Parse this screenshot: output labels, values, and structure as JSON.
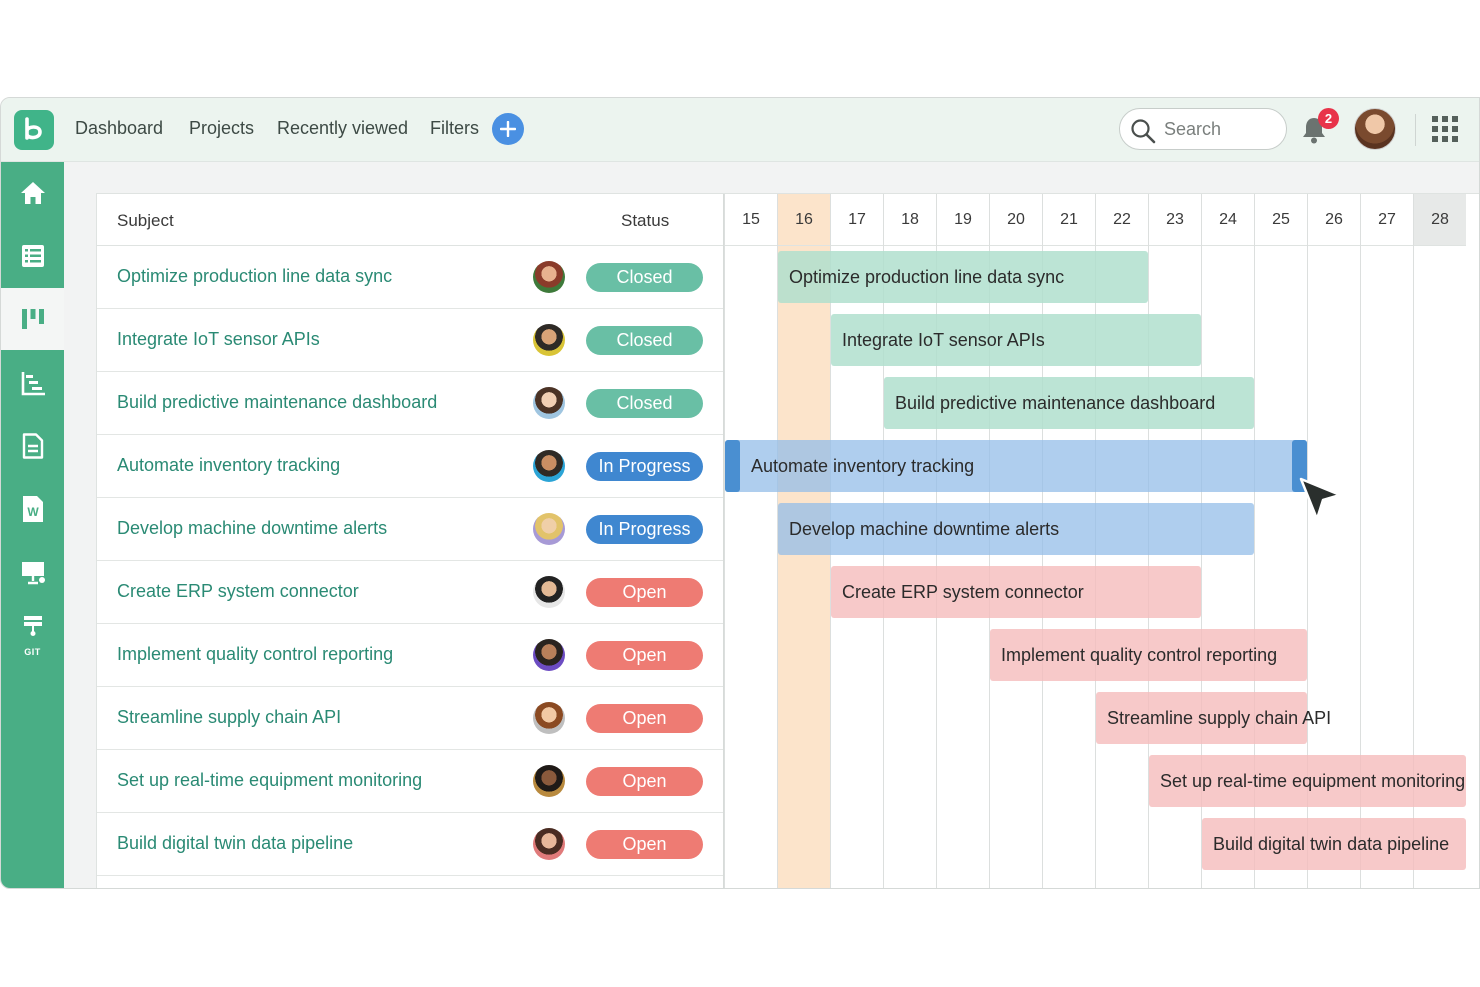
{
  "nav": {
    "links": [
      "Dashboard",
      "Projects",
      "Recently viewed",
      "Filters"
    ],
    "search_placeholder": "Search",
    "notification_count": "2"
  },
  "sidebar": {
    "items": [
      "home-icon",
      "list-icon",
      "board-icon",
      "gantt-icon",
      "document-icon",
      "word-icon",
      "presentation-icon",
      "git-icon"
    ],
    "active_index": 2,
    "git_label": "GIT"
  },
  "table": {
    "headers": {
      "subject": "Subject",
      "status": "Status"
    },
    "rows": [
      {
        "subject": "Optimize production line data sync",
        "status": "Closed"
      },
      {
        "subject": "Integrate IoT sensor APIs",
        "status": "Closed"
      },
      {
        "subject": "Build predictive maintenance dashboard",
        "status": "Closed"
      },
      {
        "subject": "Automate inventory tracking",
        "status": "In Progress"
      },
      {
        "subject": "Develop machine downtime alerts",
        "status": "In Progress"
      },
      {
        "subject": "Create ERP system connector",
        "status": "Open"
      },
      {
        "subject": "Implement quality control reporting",
        "status": "Open"
      },
      {
        "subject": "Streamline supply chain API",
        "status": "Open"
      },
      {
        "subject": "Set up real-time equipment monitoring",
        "status": "Open"
      },
      {
        "subject": "Build digital twin data pipeline",
        "status": "Open"
      }
    ]
  },
  "status_colors": {
    "Closed": "#69bfa5",
    "In Progress": "#3f87d0",
    "Open": "#ee7b73"
  },
  "gantt": {
    "days": [
      "15",
      "16",
      "17",
      "18",
      "19",
      "20",
      "21",
      "22",
      "23",
      "24",
      "25",
      "26",
      "27",
      "28"
    ],
    "today": "16",
    "weekend": [
      "28"
    ],
    "bars": [
      {
        "label": "Optimize production line data sync",
        "start": "16",
        "end": "22",
        "status": "Closed"
      },
      {
        "label": "Integrate IoT sensor APIs",
        "start": "17",
        "end": "23",
        "status": "Closed"
      },
      {
        "label": "Build predictive maintenance dashboard",
        "start": "18",
        "end": "24",
        "status": "Closed"
      },
      {
        "label": "Automate inventory tracking",
        "start": "15",
        "end": "25",
        "status": "In Progress",
        "selected": true
      },
      {
        "label": "Develop machine downtime alerts",
        "start": "16",
        "end": "24",
        "status": "In Progress"
      },
      {
        "label": "Create ERP system connector",
        "start": "17",
        "end": "23",
        "status": "Open"
      },
      {
        "label": "Implement quality control reporting",
        "start": "20",
        "end": "25",
        "status": "Open"
      },
      {
        "label": "Streamline supply chain API",
        "start": "22",
        "end": "25",
        "status": "Open"
      },
      {
        "label": "Set up real-time equipment monitoring",
        "start": "23",
        "end": "28",
        "status": "Open"
      },
      {
        "label": "Build digital twin data pipeline",
        "start": "24",
        "end": "28",
        "status": "Open"
      }
    ]
  }
}
